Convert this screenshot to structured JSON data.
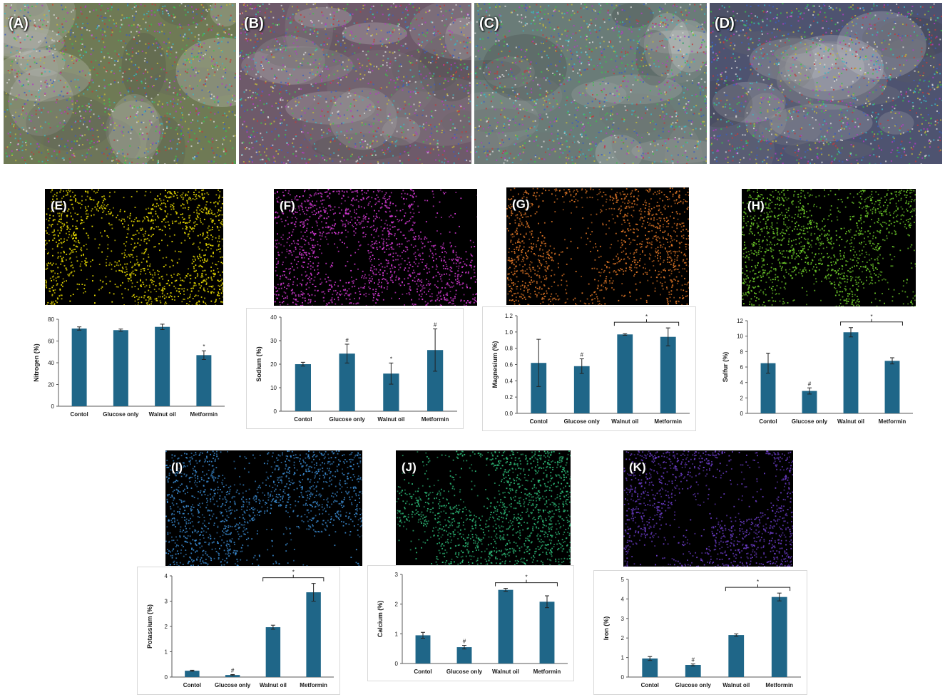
{
  "colors": {
    "bar": "#1f6688",
    "axis": "#595959",
    "text": "#1a1a1a"
  },
  "sem_panels": [
    {
      "label": "(A)",
      "base": "#6f7a55"
    },
    {
      "label": "(B)",
      "base": "#6e5a6a"
    },
    {
      "label": "(C)",
      "base": "#6a7c78"
    },
    {
      "label": "(D)",
      "base": "#4e5370"
    }
  ],
  "map_panels": [
    {
      "label": "(E)",
      "color": "#f2e400"
    },
    {
      "label": "(F)",
      "color": "#d83ad8"
    },
    {
      "label": "(G)",
      "color": "#e07626"
    },
    {
      "label": "(H)",
      "color": "#6fcf2a"
    },
    {
      "label": "(I)",
      "color": "#3a8ad0"
    },
    {
      "label": "(J)",
      "color": "#2dbb78"
    },
    {
      "label": "(K)",
      "color": "#6b3cc8"
    }
  ],
  "chart_data": [
    {
      "type": "bar",
      "ylabel": "Nitrogen (%)",
      "categories": [
        "Contol",
        "Glucose only",
        "Walnut oil",
        "Metformin"
      ],
      "values": [
        71.5,
        70,
        73,
        47
      ],
      "errors": [
        1.5,
        1,
        2.5,
        4
      ],
      "marks": [
        "",
        "",
        "",
        "*"
      ],
      "ylim": [
        0,
        80
      ],
      "ticks": [
        0,
        20,
        40,
        60,
        80
      ],
      "bracket": null
    },
    {
      "type": "bar",
      "ylabel": "Sodium (%)",
      "categories": [
        "Contol",
        "Glucose only",
        "Walnut oil",
        "Metformin"
      ],
      "values": [
        20,
        24.5,
        16,
        26
      ],
      "errors": [
        0.8,
        4,
        4.5,
        9
      ],
      "marks": [
        "",
        "#",
        "*",
        "#"
      ],
      "ylim": [
        0,
        40
      ],
      "ticks": [
        0,
        10,
        20,
        30,
        40
      ],
      "bracket": null
    },
    {
      "type": "bar",
      "ylabel": "Magnesium (%)",
      "categories": [
        "Contol",
        "Glucose only",
        "Walnut oil",
        "Metformin"
      ],
      "values": [
        0.62,
        0.58,
        0.97,
        0.94
      ],
      "errors": [
        0.29,
        0.09,
        0.01,
        0.11
      ],
      "marks": [
        "",
        "#",
        "",
        ""
      ],
      "ylim": [
        0,
        1.2
      ],
      "ticks": [
        0.0,
        0.2,
        0.4,
        0.6,
        0.8,
        1.0,
        1.2
      ],
      "tick_decimals": 1,
      "bracket": {
        "from": 2,
        "to": 3,
        "label": "*"
      }
    },
    {
      "type": "bar",
      "ylabel": "Sulfur (%)",
      "categories": [
        "Contol",
        "Glucose only",
        "Walnut oil",
        "Metformin"
      ],
      "values": [
        6.5,
        2.9,
        10.5,
        6.8
      ],
      "errors": [
        1.3,
        0.4,
        0.6,
        0.4
      ],
      "marks": [
        "",
        "#",
        "",
        ""
      ],
      "ylim": [
        0,
        12
      ],
      "ticks": [
        0,
        2,
        4,
        6,
        8,
        10,
        12
      ],
      "bracket": {
        "from": 2,
        "to": 3,
        "label": "*"
      }
    },
    {
      "type": "bar",
      "ylabel": "Potassium (%)",
      "categories": [
        "Contol",
        "Glucose only",
        "Walnut oil",
        "Metformin"
      ],
      "values": [
        0.25,
        0.08,
        1.97,
        3.35
      ],
      "errors": [
        0.02,
        0.02,
        0.08,
        0.35
      ],
      "marks": [
        "",
        "#",
        "",
        ""
      ],
      "ylim": [
        0,
        4
      ],
      "ticks": [
        0,
        1,
        2,
        3,
        4
      ],
      "bracket": {
        "from": 2,
        "to": 3,
        "label": "*"
      }
    },
    {
      "type": "bar",
      "ylabel": "Calcium (%)",
      "categories": [
        "Contol",
        "Glucose only",
        "Walnut oil",
        "Metformin"
      ],
      "values": [
        0.95,
        0.55,
        2.48,
        2.08
      ],
      "errors": [
        0.1,
        0.06,
        0.05,
        0.2
      ],
      "marks": [
        "",
        "#",
        "",
        ""
      ],
      "ylim": [
        0,
        3
      ],
      "ticks": [
        0,
        1,
        2,
        3
      ],
      "bracket": {
        "from": 2,
        "to": 3,
        "label": "*"
      }
    },
    {
      "type": "bar",
      "ylabel": "Iron (%)",
      "categories": [
        "Contol",
        "Glucose only",
        "Walnut oil",
        "Metformin"
      ],
      "values": [
        0.95,
        0.62,
        2.15,
        4.1
      ],
      "errors": [
        0.1,
        0.05,
        0.06,
        0.2
      ],
      "marks": [
        "",
        "#",
        "",
        ""
      ],
      "ylim": [
        0,
        5
      ],
      "ticks": [
        0,
        1,
        2,
        3,
        4,
        5
      ],
      "bracket": {
        "from": 2,
        "to": 3,
        "label": "*"
      }
    }
  ]
}
